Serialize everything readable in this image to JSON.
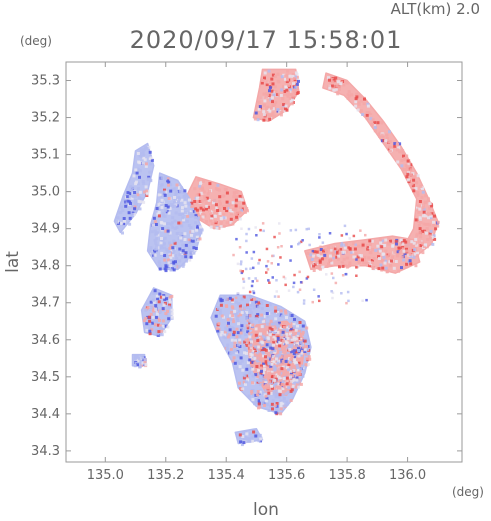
{
  "header": {
    "altitude_label": "ALT(km) 2.0",
    "timestamp": "2020/09/17 15:58:01"
  },
  "chart_data": {
    "type": "heatmap",
    "xlabel": "lon",
    "ylabel": "lat",
    "x_unit": "(deg)",
    "y_unit": "(deg)",
    "xlim": [
      134.87,
      136.18
    ],
    "ylim": [
      34.27,
      35.35
    ],
    "x_ticks": [
      "135.0",
      "135.2",
      "135.4",
      "135.6",
      "135.8",
      "136.0"
    ],
    "x_tick_values": [
      135.0,
      135.2,
      135.4,
      135.6,
      135.8,
      136.0
    ],
    "y_ticks": [
      "34.3",
      "34.4",
      "34.5",
      "34.6",
      "34.7",
      "34.8",
      "34.9",
      "35.0",
      "35.1",
      "35.2",
      "35.3"
    ],
    "y_tick_values": [
      34.3,
      34.4,
      34.5,
      34.6,
      34.7,
      34.8,
      34.9,
      35.0,
      35.1,
      35.2,
      35.3
    ],
    "colors": {
      "positive": "#f4a8a8",
      "positive_strong": "#e84a4a",
      "negative": "#b4bcf0",
      "negative_strong": "#5058e0",
      "neutral": "#e6e4f0"
    },
    "regions": [
      {
        "name": "north-arc",
        "sign": "positive",
        "points": [
          [
            135.52,
            35.33
          ],
          [
            135.63,
            35.33
          ],
          [
            135.64,
            35.27
          ],
          [
            135.6,
            35.22
          ],
          [
            135.54,
            35.19
          ],
          [
            135.49,
            35.2
          ],
          [
            135.51,
            35.28
          ]
        ]
      },
      {
        "name": "northeast-arc",
        "sign": "positive",
        "points": [
          [
            135.73,
            35.32
          ],
          [
            135.8,
            35.3
          ],
          [
            135.86,
            35.25
          ],
          [
            135.92,
            35.19
          ],
          [
            135.98,
            35.12
          ],
          [
            136.03,
            35.05
          ],
          [
            136.07,
            34.98
          ],
          [
            136.1,
            34.92
          ],
          [
            136.08,
            34.86
          ],
          [
            136.02,
            34.82
          ],
          [
            135.98,
            34.84
          ],
          [
            136.02,
            34.9
          ],
          [
            136.03,
            34.98
          ],
          [
            135.98,
            35.06
          ],
          [
            135.92,
            35.13
          ],
          [
            135.86,
            35.2
          ],
          [
            135.79,
            35.26
          ],
          [
            135.72,
            35.28
          ]
        ]
      },
      {
        "name": "east-band",
        "sign": "positive",
        "points": [
          [
            135.66,
            34.84
          ],
          [
            135.76,
            34.86
          ],
          [
            135.86,
            34.87
          ],
          [
            135.95,
            34.88
          ],
          [
            136.02,
            34.87
          ],
          [
            136.04,
            34.81
          ],
          [
            135.96,
            34.78
          ],
          [
            135.86,
            34.8
          ],
          [
            135.76,
            34.8
          ],
          [
            135.68,
            34.79
          ]
        ]
      },
      {
        "name": "center-north",
        "sign": "positive",
        "points": [
          [
            135.3,
            35.04
          ],
          [
            135.38,
            35.02
          ],
          [
            135.45,
            35.0
          ],
          [
            135.47,
            34.95
          ],
          [
            135.42,
            34.91
          ],
          [
            135.36,
            34.9
          ],
          [
            135.3,
            34.93
          ],
          [
            135.27,
            34.99
          ]
        ]
      },
      {
        "name": "west-strip",
        "sign": "negative",
        "points": [
          [
            135.1,
            35.11
          ],
          [
            135.14,
            35.13
          ],
          [
            135.16,
            35.07
          ],
          [
            135.14,
            35.0
          ],
          [
            135.1,
            34.94
          ],
          [
            135.05,
            34.89
          ],
          [
            135.03,
            34.92
          ],
          [
            135.06,
            34.99
          ],
          [
            135.09,
            35.05
          ]
        ]
      },
      {
        "name": "west-center",
        "sign": "negative",
        "points": [
          [
            135.18,
            35.05
          ],
          [
            135.24,
            35.03
          ],
          [
            135.28,
            34.98
          ],
          [
            135.32,
            34.9
          ],
          [
            135.3,
            34.84
          ],
          [
            135.24,
            34.79
          ],
          [
            135.18,
            34.79
          ],
          [
            135.14,
            34.84
          ],
          [
            135.15,
            34.91
          ],
          [
            135.17,
            34.97
          ]
        ]
      },
      {
        "name": "southwest-patch",
        "sign": "negative",
        "points": [
          [
            135.16,
            34.74
          ],
          [
            135.22,
            34.72
          ],
          [
            135.22,
            34.66
          ],
          [
            135.18,
            34.61
          ],
          [
            135.13,
            34.62
          ],
          [
            135.12,
            34.68
          ]
        ]
      },
      {
        "name": "south-blob",
        "sign": "negative",
        "points": [
          [
            135.38,
            34.72
          ],
          [
            135.48,
            34.72
          ],
          [
            135.58,
            34.69
          ],
          [
            135.66,
            34.65
          ],
          [
            135.68,
            34.58
          ],
          [
            135.66,
            34.51
          ],
          [
            135.62,
            34.44
          ],
          [
            135.58,
            34.4
          ],
          [
            135.5,
            34.42
          ],
          [
            135.44,
            34.47
          ],
          [
            135.42,
            34.54
          ],
          [
            135.38,
            34.6
          ],
          [
            135.35,
            34.66
          ]
        ]
      },
      {
        "name": "south-red-core",
        "sign": "positive",
        "points": [
          [
            135.5,
            34.64
          ],
          [
            135.6,
            34.65
          ],
          [
            135.66,
            34.6
          ],
          [
            135.65,
            34.52
          ],
          [
            135.6,
            34.45
          ],
          [
            135.53,
            34.46
          ],
          [
            135.48,
            34.53
          ],
          [
            135.47,
            34.6
          ]
        ]
      },
      {
        "name": "small-southwest",
        "sign": "negative",
        "points": [
          [
            135.09,
            34.56
          ],
          [
            135.13,
            34.56
          ],
          [
            135.13,
            34.53
          ],
          [
            135.09,
            34.53
          ]
        ]
      },
      {
        "name": "bottom-fragment",
        "sign": "negative",
        "points": [
          [
            135.43,
            34.35
          ],
          [
            135.5,
            34.36
          ],
          [
            135.52,
            34.33
          ],
          [
            135.44,
            34.32
          ]
        ]
      }
    ]
  }
}
